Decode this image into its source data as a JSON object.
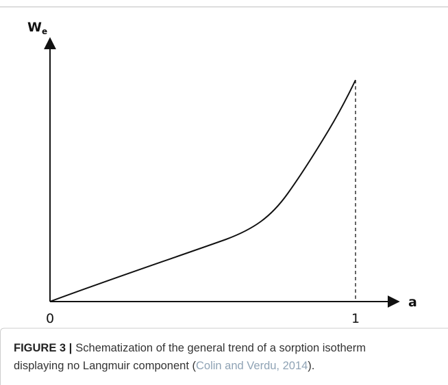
{
  "figure": {
    "y_axis_label": {
      "main": "W",
      "sub": "e"
    },
    "x_axis_label": "a",
    "x_ticks": [
      "0",
      "1"
    ]
  },
  "caption": {
    "label": "FIGURE 3 |",
    "line1": "Schematization of the general trend of a sorption isotherm",
    "line2_before": "displaying no Langmuir component (",
    "citation": "Colin and Verdu, 2014",
    "line2_after": ")."
  }
}
